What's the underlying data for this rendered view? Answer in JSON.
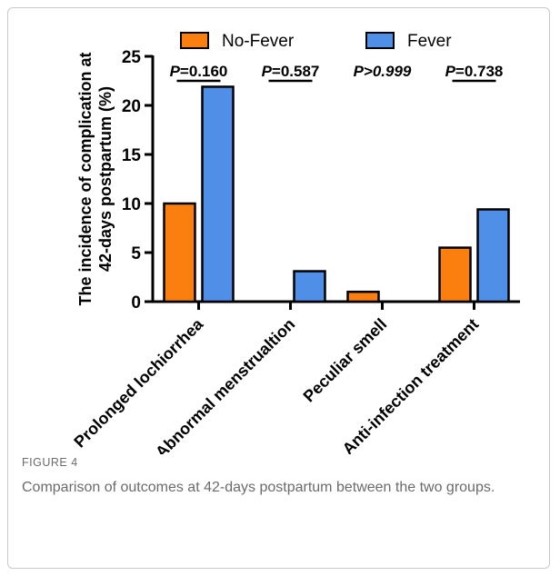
{
  "chart_data": {
    "type": "bar",
    "categories": [
      "Prolonged lochiorrhea",
      "Abnormal menstrualtion",
      "Peculiar smell",
      "Anti-infection treatment"
    ],
    "series": [
      {
        "name": "No-Fever",
        "values": [
          10,
          0,
          1,
          5.5
        ],
        "color": "#fb7f0e"
      },
      {
        "name": "Fever",
        "values": [
          21.9,
          3.1,
          0,
          9.4
        ],
        "color": "#4f8fe8"
      }
    ],
    "ylabel": "The incidence of complication at 42-days postpartum (%)",
    "ylim": [
      0,
      25
    ],
    "yticks": [
      0,
      5,
      10,
      15,
      20,
      25
    ],
    "grid": false,
    "legend": "top",
    "annotations": [
      {
        "prefix": "P",
        "op": "=",
        "value": "0.160"
      },
      {
        "prefix": "P",
        "op": "=",
        "value": "0.587"
      },
      {
        "prefix": "P",
        "op": ">",
        "value": "0.999"
      },
      {
        "prefix": "P",
        "op": "=",
        "value": "0.738"
      }
    ]
  },
  "caption": {
    "label": "FIGURE 4",
    "text": "Comparison of outcomes at 42-days postpartum between the two groups."
  }
}
